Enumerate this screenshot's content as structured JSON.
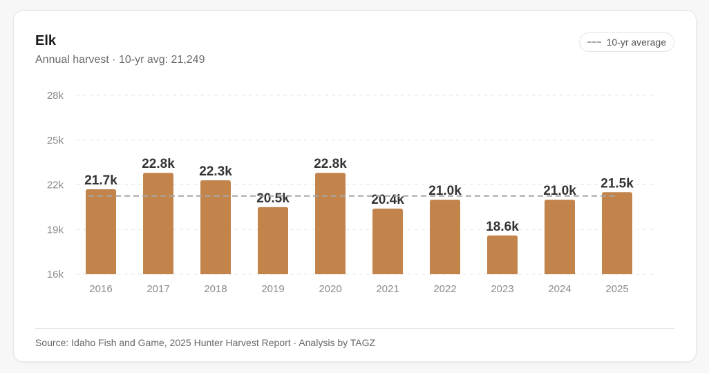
{
  "card": {
    "title": "Elk",
    "subtitle": "Annual harvest · 10-yr avg: 21,249",
    "legend_label": "10-yr average",
    "source": "Source: Idaho Fish and Game, 2025 Hunter Harvest Report · Analysis by TAGZ"
  },
  "colors": {
    "bar": "#c2844b",
    "average_line": "#a6a6a6",
    "grid": "#e6e6e6",
    "tick_text": "#8a8a8a",
    "label_text": "#333333"
  },
  "chart_data": {
    "type": "bar",
    "title": "Elk",
    "subtitle": "Annual harvest · 10-yr avg: 21,249",
    "xlabel": "",
    "ylabel": "",
    "categories": [
      "2016",
      "2017",
      "2018",
      "2019",
      "2020",
      "2021",
      "2022",
      "2023",
      "2024",
      "2025"
    ],
    "values": [
      21700,
      22800,
      22300,
      20500,
      22800,
      20400,
      21000,
      18600,
      21000,
      21500
    ],
    "data_labels": [
      "21.7k",
      "22.8k",
      "22.3k",
      "20.5k",
      "22.8k",
      "20.4k",
      "21.0k",
      "18.6k",
      "21.0k",
      "21.5k"
    ],
    "ylim": [
      16000,
      28000
    ],
    "yticks": [
      16000,
      19000,
      22000,
      25000,
      28000
    ],
    "ytick_labels": [
      "16k",
      "19k",
      "22k",
      "25k",
      "28k"
    ],
    "reference_line": {
      "name": "10-yr average",
      "value": 21249
    },
    "grid": true,
    "legend": "top-right"
  }
}
